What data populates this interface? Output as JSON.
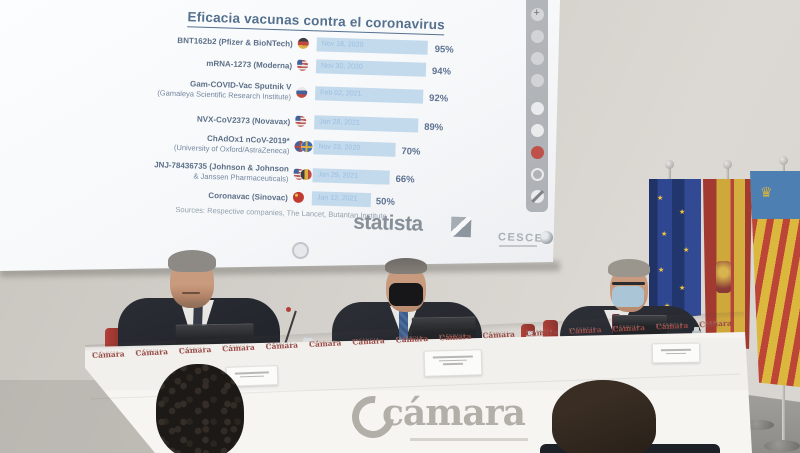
{
  "presentation": {
    "title": "Eficacia vacunas contra el coronavirus",
    "rows": [
      {
        "line1": "BNT162b2 (Pfizer & BioNTech)",
        "line2": "",
        "flag": "germany",
        "date": "Nov 18, 2020",
        "value": "95%"
      },
      {
        "line1": "mRNA-1273 (Moderna)",
        "line2": "",
        "flag": "united-states",
        "date": "Nov 30, 2020",
        "value": "94%"
      },
      {
        "line1": "Gam-COVID-Vac Sputnik V",
        "line2": "(Gamaleya Scientific Research Institute)",
        "flag": "russia",
        "date": "Feb 02, 2021",
        "value": "92%"
      },
      {
        "line1": "NVX-CoV2373 (Novavax)",
        "line2": "",
        "flag": "united-states",
        "date": "Jan 28, 2021",
        "value": "89%"
      },
      {
        "line1": "ChAdOx1 nCoV-2019*",
        "line2": "(University of Oxford/AstraZeneca)",
        "flag": "united-kingdom-sweden",
        "date": "Nov 23, 2020",
        "value": "70%"
      },
      {
        "line1": "JNJ-78436735 (Johnson & Johnson",
        "line2": "& Janssen Pharmaceuticals)",
        "flag": "united-states-belgium",
        "date": "Jan 29, 2021",
        "value": "66%"
      },
      {
        "line1": "Coronavac (Sinovac)",
        "line2": "",
        "flag": "china",
        "date": "Jan 12, 2021",
        "value": "50%"
      }
    ],
    "sources": "Sources: Respective companies, The Lancet, Butantan Institute",
    "brand": "statista",
    "footer_logo": "CESCE",
    "toolbar_icons": [
      "plus",
      "dot",
      "dot",
      "dot",
      "circle",
      "circle",
      "record-red",
      "ring",
      "no-entry"
    ]
  },
  "chart_data": {
    "type": "bar",
    "orientation": "horizontal",
    "title": "Eficacia vacunas contra el coronavirus",
    "categories": [
      "BNT162b2 (Pfizer & BioNTech)",
      "mRNA-1273 (Moderna)",
      "Gam-COVID-Vac Sputnik V (Gamaleya Scientific Research Institute)",
      "NVX-CoV2373 (Novavax)",
      "ChAdOx1 nCoV-2019* (University of Oxford/AstraZeneca)",
      "JNJ-78436735 (Johnson & Johnson & Janssen Pharmaceuticals)",
      "Coronavac (Sinovac)"
    ],
    "values": [
      95,
      94,
      92,
      89,
      70,
      66,
      50
    ],
    "bar_labels": [
      "Nov 18, 2020",
      "Nov 30, 2020",
      "Feb 02, 2021",
      "Jan 28, 2021",
      "Nov 23, 2020",
      "Jan 29, 2021",
      "Jan 12, 2021"
    ],
    "unit": "%",
    "xlim": [
      0,
      100
    ],
    "bar_color": "#c3d9ec",
    "legend": "none",
    "grid": "off"
  },
  "venue": {
    "skirt_logo": {
      "text": "Cámara",
      "sub": "VALENCIA"
    },
    "skirt_logo_count": 15,
    "front_logo": {
      "text": "cámara"
    },
    "flags": [
      "european-union",
      "spain",
      "comunitat-valenciana"
    ]
  },
  "colors": {
    "camara_red": "#9a4a45",
    "bar_fill": "#c3d9ec",
    "statista_gray": "#878f99",
    "chair_red": "#a83c34",
    "mask_black": "#17171a",
    "mask_blue": "#aac6d6"
  }
}
